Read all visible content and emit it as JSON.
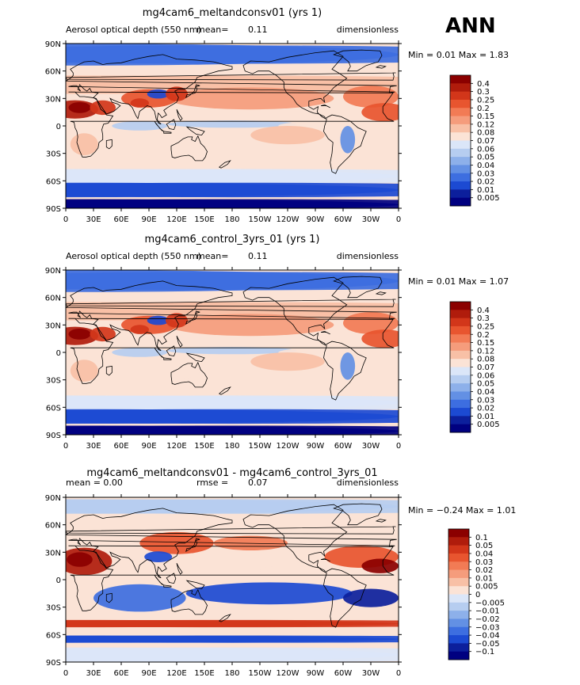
{
  "season": "ANN",
  "panels": [
    {
      "title": "mg4cam6_meltandconsv01 (yrs 1)",
      "left_text": "Aerosol optical depth (550 nm)",
      "mean_text": "mean=",
      "mean_value": "0.11",
      "right_text": "dimensionless",
      "minmax_text": "Min =   0.01  Max =    1.83",
      "levels": [
        "0.4",
        "0.3",
        "0.25",
        "0.2",
        "0.15",
        "0.12",
        "0.08",
        "0.07",
        "0.06",
        "0.05",
        "0.04",
        "0.03",
        "0.02",
        "0.01",
        "0.005"
      ],
      "colors": [
        "#8b0000",
        "#b01c0c",
        "#d2361a",
        "#e8552f",
        "#f27b55",
        "#f59c7c",
        "#f8c0a6",
        "#fbe3d6",
        "#dbe6f8",
        "#b6cdf0",
        "#8db0ea",
        "#6390e4",
        "#3d6ee0",
        "#1c4ad2",
        "#0c1f9c",
        "#000080"
      ]
    },
    {
      "title": "mg4cam6_control_3yrs_01 (yrs 1)",
      "left_text": "Aerosol optical depth (550 nm)",
      "mean_text": "mean=",
      "mean_value": "0.11",
      "right_text": "dimensionless",
      "minmax_text": "Min =   0.01  Max =    1.07",
      "levels": [
        "0.4",
        "0.3",
        "0.25",
        "0.2",
        "0.15",
        "0.12",
        "0.08",
        "0.07",
        "0.06",
        "0.05",
        "0.04",
        "0.03",
        "0.02",
        "0.01",
        "0.005"
      ],
      "colors": [
        "#8b0000",
        "#b01c0c",
        "#d2361a",
        "#e8552f",
        "#f27b55",
        "#f59c7c",
        "#f8c0a6",
        "#fbe3d6",
        "#dbe6f8",
        "#b6cdf0",
        "#8db0ea",
        "#6390e4",
        "#3d6ee0",
        "#1c4ad2",
        "#0c1f9c",
        "#000080"
      ]
    },
    {
      "title": "mg4cam6_meltandconsv01 - mg4cam6_control_3yrs_01",
      "left_text": "mean =     0.00",
      "mean_text": "rmse =",
      "mean_value": "0.07",
      "right_text": "dimensionless",
      "minmax_text": "Min =  −0.24  Max =    1.01",
      "levels": [
        "0.1",
        "0.05",
        "0.04",
        "0.03",
        "0.02",
        "0.01",
        "0.005",
        "0",
        "−0.005",
        "−0.01",
        "−0.02",
        "−0.03",
        "−0.04",
        "−0.05",
        "−0.1"
      ],
      "colors": [
        "#8b0000",
        "#b01c0c",
        "#d2361a",
        "#e8552f",
        "#f27b55",
        "#f59c7c",
        "#f8c0a6",
        "#fbe3d6",
        "#dbe6f8",
        "#b6cdf0",
        "#8db0ea",
        "#6390e4",
        "#3d6ee0",
        "#1c4ad2",
        "#0c1f9c",
        "#000080"
      ]
    }
  ],
  "chart_data": [
    {
      "type": "heatmap",
      "title": "mg4cam6_meltandconsv01 (yrs 1)",
      "variable": "Aerosol optical depth (550 nm)",
      "units": "dimensionless",
      "mean": 0.11,
      "min": 0.01,
      "max": 1.83,
      "x_ticks": [
        "0",
        "30E",
        "60E",
        "90E",
        "120E",
        "150E",
        "180",
        "150W",
        "120W",
        "90W",
        "60W",
        "30W",
        "0"
      ],
      "y_ticks": [
        "90N",
        "60N",
        "30N",
        "0",
        "30S",
        "60S",
        "90S"
      ],
      "contour_levels": [
        0.005,
        0.01,
        0.02,
        0.03,
        0.04,
        0.05,
        0.06,
        0.07,
        0.08,
        0.12,
        0.15,
        0.2,
        0.25,
        0.3,
        0.4
      ],
      "map_type": "base"
    },
    {
      "type": "heatmap",
      "title": "mg4cam6_control_3yrs_01 (yrs 1)",
      "variable": "Aerosol optical depth (550 nm)",
      "units": "dimensionless",
      "mean": 0.11,
      "min": 0.01,
      "max": 1.07,
      "x_ticks": [
        "0",
        "30E",
        "60E",
        "90E",
        "120E",
        "150E",
        "180",
        "150W",
        "120W",
        "90W",
        "60W",
        "30W",
        "0"
      ],
      "y_ticks": [
        "90N",
        "60N",
        "30N",
        "0",
        "30S",
        "60S",
        "90S"
      ],
      "contour_levels": [
        0.005,
        0.01,
        0.02,
        0.03,
        0.04,
        0.05,
        0.06,
        0.07,
        0.08,
        0.12,
        0.15,
        0.2,
        0.25,
        0.3,
        0.4
      ],
      "map_type": "base"
    },
    {
      "type": "heatmap",
      "title": "mg4cam6_meltandconsv01 - mg4cam6_control_3yrs_01",
      "units": "dimensionless",
      "mean": 0.0,
      "rmse": 0.07,
      "min": -0.24,
      "max": 1.01,
      "x_ticks": [
        "0",
        "30E",
        "60E",
        "90E",
        "120E",
        "150E",
        "180",
        "150W",
        "120W",
        "90W",
        "60W",
        "30W",
        "0"
      ],
      "y_ticks": [
        "90N",
        "60N",
        "30N",
        "0",
        "30S",
        "60S",
        "90S"
      ],
      "contour_levels": [
        -0.1,
        -0.05,
        -0.04,
        -0.03,
        -0.02,
        -0.01,
        -0.005,
        0,
        0.005,
        0.01,
        0.02,
        0.03,
        0.04,
        0.05,
        0.1
      ],
      "map_type": "diff"
    }
  ]
}
